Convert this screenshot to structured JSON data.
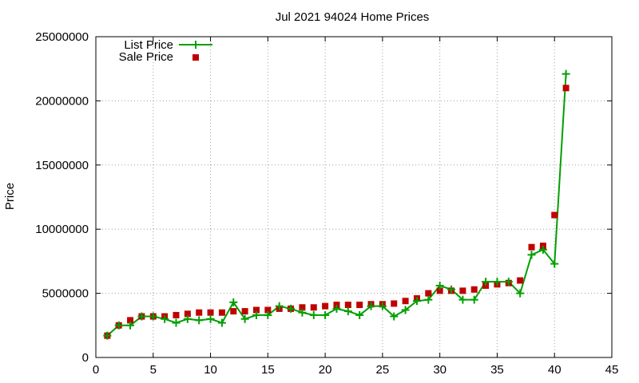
{
  "chart_data": {
    "type": "line",
    "title": "Jul 2021 94024 Home Prices",
    "ylabel": "Price",
    "xlabel": "",
    "xlim": [
      0,
      45
    ],
    "ylim": [
      0,
      25000000
    ],
    "xticks": [
      0,
      5,
      10,
      15,
      20,
      25,
      30,
      35,
      40,
      45
    ],
    "yticks": [
      0,
      5000000,
      10000000,
      15000000,
      20000000,
      25000000
    ],
    "grid": true,
    "legend_position": "top-left",
    "series": [
      {
        "name": "List Price",
        "style": "line-with-plus-markers",
        "color": "#00a000",
        "x": [
          1,
          2,
          3,
          4,
          5,
          6,
          7,
          8,
          9,
          10,
          11,
          12,
          13,
          14,
          15,
          16,
          17,
          18,
          19,
          20,
          21,
          22,
          23,
          24,
          25,
          26,
          27,
          28,
          29,
          30,
          31,
          32,
          33,
          34,
          35,
          36,
          37,
          38,
          39,
          40,
          41
        ],
        "y": [
          1700000,
          2500000,
          2500000,
          3200000,
          3200000,
          3000000,
          2700000,
          3000000,
          2900000,
          3000000,
          2700000,
          4300000,
          3000000,
          3300000,
          3300000,
          4000000,
          3800000,
          3500000,
          3300000,
          3300000,
          3800000,
          3600000,
          3300000,
          4000000,
          4000000,
          3200000,
          3700000,
          4400000,
          4500000,
          5600000,
          5300000,
          4500000,
          4500000,
          5900000,
          5900000,
          5900000,
          5000000,
          8000000,
          8400000,
          7300000,
          22100000
        ]
      },
      {
        "name": "Sale Price",
        "style": "square-markers",
        "color": "#c00000",
        "x": [
          1,
          2,
          3,
          4,
          5,
          6,
          7,
          8,
          9,
          10,
          11,
          12,
          13,
          14,
          15,
          16,
          17,
          18,
          19,
          20,
          21,
          22,
          23,
          24,
          25,
          26,
          27,
          28,
          29,
          30,
          31,
          32,
          33,
          34,
          35,
          36,
          37,
          38,
          39,
          40,
          41
        ],
        "y": [
          1700000,
          2500000,
          2900000,
          3200000,
          3200000,
          3200000,
          3300000,
          3400000,
          3500000,
          3500000,
          3500000,
          3600000,
          3600000,
          3700000,
          3700000,
          3800000,
          3800000,
          3900000,
          3900000,
          4000000,
          4100000,
          4100000,
          4100000,
          4150000,
          4150000,
          4200000,
          4400000,
          4600000,
          5000000,
          5200000,
          5200000,
          5200000,
          5300000,
          5600000,
          5700000,
          5800000,
          6000000,
          8600000,
          8700000,
          11100000,
          21000000
        ]
      }
    ]
  }
}
